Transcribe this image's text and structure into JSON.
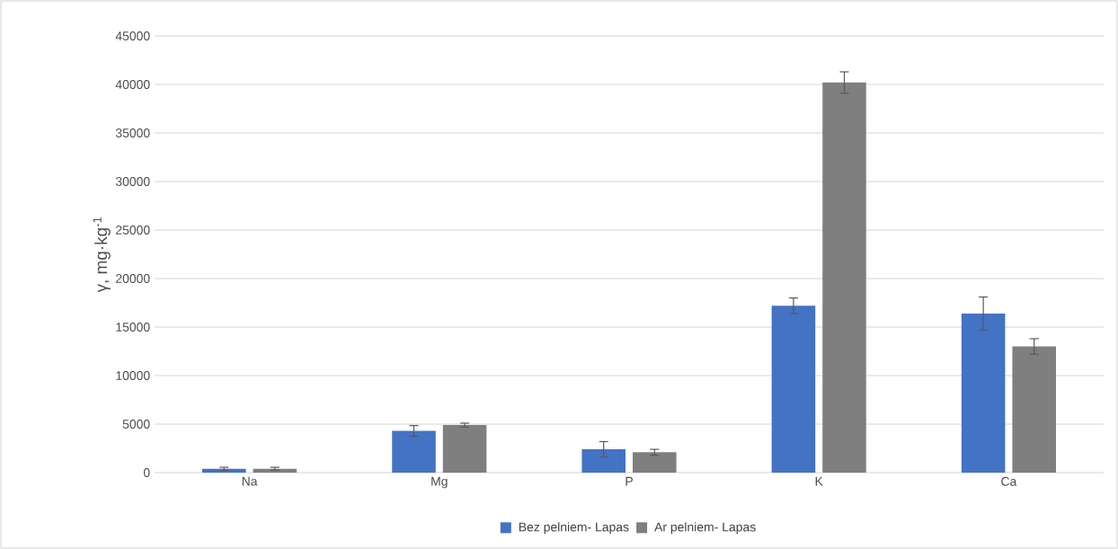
{
  "chart_data": {
    "type": "bar",
    "categories": [
      "Na",
      "Mg",
      "P",
      "K",
      "Ca"
    ],
    "series": [
      {
        "name": "Bez pelniem- Lapas",
        "color": "#4472c4",
        "values": [
          400,
          4300,
          2400,
          17200,
          16400
        ],
        "errors": [
          150,
          550,
          800,
          800,
          1700
        ]
      },
      {
        "name": "Ar pelniem- Lapas",
        "color": "#7f7f7f",
        "values": [
          400,
          4900,
          2100,
          40200,
          13000
        ],
        "errors": [
          150,
          200,
          300,
          1100,
          800
        ]
      }
    ],
    "ylabel": "γ, mg·kg$^{-1}$",
    "ylim": [
      0,
      45000
    ],
    "yticks": [
      0,
      5000,
      10000,
      15000,
      20000,
      25000,
      30000,
      35000,
      40000,
      45000
    ],
    "grid": "y",
    "legend": "bottom"
  }
}
